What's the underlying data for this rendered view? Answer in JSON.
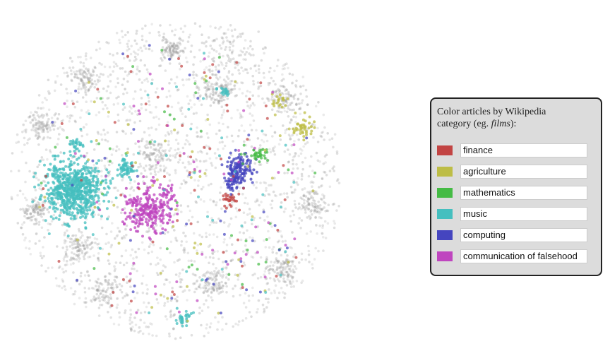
{
  "legend": {
    "title_parts": [
      "Color articles by Wikipedia category (eg. ",
      "films",
      "):"
    ],
    "categories": [
      {
        "name": "finance",
        "color": "#c24443"
      },
      {
        "name": "agriculture",
        "color": "#bdbd46"
      },
      {
        "name": "mathematics",
        "color": "#45bb45"
      },
      {
        "name": "music",
        "color": "#45bfbf"
      },
      {
        "name": "computing",
        "color": "#4545bf"
      },
      {
        "name": "communication of falsehood",
        "color": "#bf45bf"
      }
    ]
  }
}
